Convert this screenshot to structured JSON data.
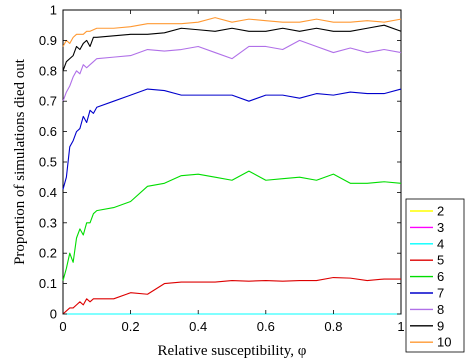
{
  "chart_data": {
    "type": "line",
    "xlabel": "Relative susceptibility, φ",
    "ylabel": "Proportion of simulations died out",
    "xlim": [
      0,
      1
    ],
    "ylim": [
      0,
      1
    ],
    "x_ticks": [
      "0",
      "0.2",
      "0.4",
      "0.6",
      "0.8",
      "1"
    ],
    "y_ticks": [
      "0",
      "0.1",
      "0.2",
      "0.3",
      "0.4",
      "0.5",
      "0.6",
      "0.7",
      "0.8",
      "0.9",
      "1"
    ],
    "grid": false,
    "legend_position": "outside-right-bottom",
    "x": [
      0,
      0.01,
      0.02,
      0.03,
      0.04,
      0.05,
      0.06,
      0.07,
      0.08,
      0.09,
      0.1,
      0.15,
      0.2,
      0.25,
      0.3,
      0.35,
      0.4,
      0.45,
      0.5,
      0.55,
      0.6,
      0.65,
      0.7,
      0.75,
      0.8,
      0.85,
      0.9,
      0.95,
      1
    ],
    "series": [
      {
        "name": "2",
        "color": "#ffff00",
        "values": [
          0,
          0,
          0,
          0,
          0,
          0,
          0,
          0,
          0,
          0,
          0,
          0,
          0,
          0,
          0,
          0,
          0,
          0,
          0,
          0,
          0,
          0,
          0,
          0,
          0,
          0,
          0,
          0,
          0
        ]
      },
      {
        "name": "3",
        "color": "#ff00ff",
        "values": [
          0,
          0,
          0,
          0,
          0,
          0,
          0,
          0,
          0,
          0,
          0,
          0,
          0,
          0,
          0,
          0,
          0,
          0,
          0,
          0,
          0,
          0,
          0,
          0,
          0,
          0,
          0,
          0,
          0
        ]
      },
      {
        "name": "4",
        "color": "#00ffff",
        "values": [
          0,
          0,
          0,
          0,
          0,
          0,
          0,
          0,
          0,
          0,
          0,
          0,
          0,
          0,
          0,
          0,
          0,
          0,
          0,
          0,
          0,
          0,
          0,
          0,
          0,
          0,
          0,
          0,
          0
        ]
      },
      {
        "name": "5",
        "color": "#dd0000",
        "values": [
          0,
          0.01,
          0.02,
          0.02,
          0.03,
          0.04,
          0.03,
          0.05,
          0.04,
          0.05,
          0.05,
          0.05,
          0.07,
          0.065,
          0.1,
          0.105,
          0.105,
          0.105,
          0.11,
          0.108,
          0.11,
          0.108,
          0.11,
          0.11,
          0.12,
          0.118,
          0.11,
          0.115,
          0.115
        ]
      },
      {
        "name": "6",
        "color": "#00dd00",
        "values": [
          0.11,
          0.15,
          0.2,
          0.17,
          0.25,
          0.28,
          0.26,
          0.3,
          0.3,
          0.33,
          0.34,
          0.35,
          0.37,
          0.42,
          0.43,
          0.455,
          0.46,
          0.45,
          0.44,
          0.47,
          0.44,
          0.445,
          0.45,
          0.44,
          0.46,
          0.43,
          0.43,
          0.435,
          0.43
        ]
      },
      {
        "name": "7",
        "color": "#0000cc",
        "values": [
          0.41,
          0.45,
          0.55,
          0.57,
          0.6,
          0.61,
          0.65,
          0.63,
          0.67,
          0.66,
          0.68,
          0.7,
          0.72,
          0.74,
          0.735,
          0.72,
          0.72,
          0.72,
          0.72,
          0.7,
          0.72,
          0.72,
          0.71,
          0.725,
          0.72,
          0.73,
          0.725,
          0.725,
          0.74
        ]
      },
      {
        "name": "8",
        "color": "#b070e8",
        "values": [
          0.7,
          0.73,
          0.75,
          0.78,
          0.8,
          0.79,
          0.82,
          0.81,
          0.82,
          0.83,
          0.84,
          0.845,
          0.85,
          0.87,
          0.865,
          0.87,
          0.88,
          0.86,
          0.84,
          0.88,
          0.88,
          0.87,
          0.9,
          0.88,
          0.86,
          0.875,
          0.86,
          0.87,
          0.86
        ]
      },
      {
        "name": "9",
        "color": "#000000",
        "values": [
          0.8,
          0.83,
          0.84,
          0.85,
          0.88,
          0.87,
          0.89,
          0.9,
          0.88,
          0.91,
          0.91,
          0.915,
          0.92,
          0.92,
          0.925,
          0.94,
          0.935,
          0.93,
          0.94,
          0.93,
          0.93,
          0.94,
          0.93,
          0.94,
          0.93,
          0.93,
          0.94,
          0.95,
          0.93
        ]
      },
      {
        "name": "10",
        "color": "#ff9933",
        "values": [
          0.88,
          0.9,
          0.89,
          0.91,
          0.92,
          0.92,
          0.92,
          0.93,
          0.93,
          0.935,
          0.94,
          0.94,
          0.945,
          0.955,
          0.955,
          0.955,
          0.96,
          0.975,
          0.96,
          0.97,
          0.965,
          0.96,
          0.96,
          0.97,
          0.96,
          0.96,
          0.965,
          0.96,
          0.97
        ]
      }
    ]
  }
}
